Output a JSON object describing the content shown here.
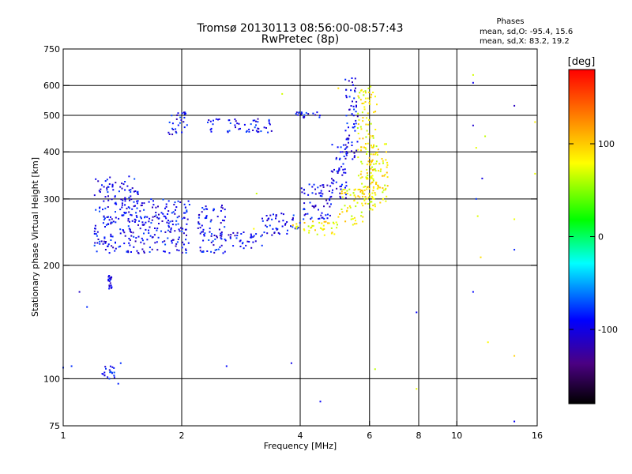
{
  "chart_data": {
    "type": "scatter",
    "title": "Tromsø 20130113 08:56:00-08:57:43",
    "subtitle": "RwPretec (8p)",
    "xlabel": "Frequency [MHz]",
    "ylabel": "Stationary phase Virtual Height [km]",
    "x_scale": "log",
    "y_scale": "log",
    "xlim": [
      1,
      16
    ],
    "ylim": [
      75,
      750
    ],
    "x_ticks": [
      {
        "value": 1,
        "label": "1"
      },
      {
        "value": 2,
        "label": "2"
      },
      {
        "value": 4,
        "label": "4"
      },
      {
        "value": 6,
        "label": "6"
      },
      {
        "value": 8,
        "label": "8"
      },
      {
        "value": 10,
        "label": "10"
      },
      {
        "value": 16,
        "label": "16"
      }
    ],
    "x_grid": [
      2,
      4,
      6,
      8,
      10
    ],
    "y_ticks": [
      {
        "value": 75,
        "label": "75"
      },
      {
        "value": 100,
        "label": "100"
      },
      {
        "value": 200,
        "label": "200"
      },
      {
        "value": 300,
        "label": "300"
      },
      {
        "value": 400,
        "label": "400"
      },
      {
        "value": 500,
        "label": "500"
      },
      {
        "value": 600,
        "label": "600"
      },
      {
        "value": 750,
        "label": "750"
      }
    ],
    "y_grid": [
      100,
      200,
      300,
      400,
      500,
      600
    ],
    "grid": true,
    "stats": {
      "heading": "Phases",
      "line_o": "mean, sd,O: -95.4, 15.6",
      "line_x": "mean, sd,X:  83.2, 19.2"
    },
    "colorbar": {
      "label": "[deg]",
      "range": [
        -180,
        180
      ],
      "ticks": [
        {
          "value": 100,
          "label": "100"
        },
        {
          "value": 0,
          "label": "0"
        },
        {
          "value": -100,
          "label": "-100"
        }
      ],
      "colormap": [
        "#000000",
        "#4b0082",
        "#0000ff",
        "#00ffff",
        "#00ff00",
        "#ffff00",
        "#ff7f00",
        "#ff0000"
      ]
    },
    "series": [
      {
        "mode": "O",
        "phase_deg": -95,
        "segments": [
          {
            "x0": 1.2,
            "x1": 1.55,
            "ymin": 215,
            "ymax": 345
          },
          {
            "x0": 1.55,
            "x1": 2.1,
            "ymin": 215,
            "ymax": 300
          },
          {
            "x0": 2.2,
            "x1": 2.6,
            "ymin": 215,
            "ymax": 290
          },
          {
            "x0": 2.6,
            "x1": 3.2,
            "ymin": 222,
            "ymax": 245
          },
          {
            "x0": 3.2,
            "x1": 4.0,
            "ymin": 240,
            "ymax": 275
          },
          {
            "x0": 4.0,
            "x1": 4.8,
            "ymin": 265,
            "ymax": 330
          },
          {
            "x0": 4.8,
            "x1": 5.3,
            "ymin": 300,
            "ymax": 420
          },
          {
            "x0": 5.2,
            "x1": 5.6,
            "ymin": 380,
            "ymax": 630
          },
          {
            "x0": 1.85,
            "x1": 2.1,
            "ymin": 445,
            "ymax": 510
          },
          {
            "x0": 2.3,
            "x1": 3.4,
            "ymin": 450,
            "ymax": 490
          },
          {
            "x0": 3.9,
            "x1": 4.5,
            "ymin": 490,
            "ymax": 510
          },
          {
            "x0": 1.25,
            "x1": 1.35,
            "ymin": 100,
            "ymax": 108
          },
          {
            "x0": 1.3,
            "x1": 1.33,
            "ymin": 172,
            "ymax": 188
          }
        ],
        "points": [
          [
            1.0,
            107
          ],
          [
            1.05,
            108
          ],
          [
            1.1,
            170
          ],
          [
            1.15,
            155
          ],
          [
            1.38,
            97
          ],
          [
            1.4,
            110
          ],
          [
            2.6,
            108
          ],
          [
            3.8,
            110
          ],
          [
            4.5,
            87
          ],
          [
            7.9,
            150
          ],
          [
            11.0,
            610
          ],
          [
            11.0,
            470
          ],
          [
            11.2,
            300
          ],
          [
            11.0,
            170
          ],
          [
            14.0,
            530
          ],
          [
            14.0,
            220
          ],
          [
            14.0,
            77
          ],
          [
            11.6,
            340
          ]
        ]
      },
      {
        "mode": "X",
        "phase_deg": 83,
        "segments": [
          {
            "x0": 3.8,
            "x1": 5.0,
            "ymin": 240,
            "ymax": 262
          },
          {
            "x0": 5.0,
            "x1": 5.8,
            "ymin": 255,
            "ymax": 320
          },
          {
            "x0": 5.6,
            "x1": 6.3,
            "ymin": 280,
            "ymax": 600
          },
          {
            "x0": 6.0,
            "x1": 6.7,
            "ymin": 290,
            "ymax": 420
          }
        ],
        "points": [
          [
            3.05,
            250
          ],
          [
            3.1,
            310
          ],
          [
            3.6,
            570
          ],
          [
            5.0,
            590
          ],
          [
            6.2,
            106
          ],
          [
            7.9,
            94
          ],
          [
            11.0,
            640
          ],
          [
            11.2,
            410
          ],
          [
            11.3,
            270
          ],
          [
            11.5,
            210
          ],
          [
            11.8,
            440
          ],
          [
            14.0,
            265
          ],
          [
            14.0,
            115
          ],
          [
            15.8,
            480
          ],
          [
            15.8,
            350
          ],
          [
            12.0,
            125
          ]
        ]
      }
    ]
  }
}
